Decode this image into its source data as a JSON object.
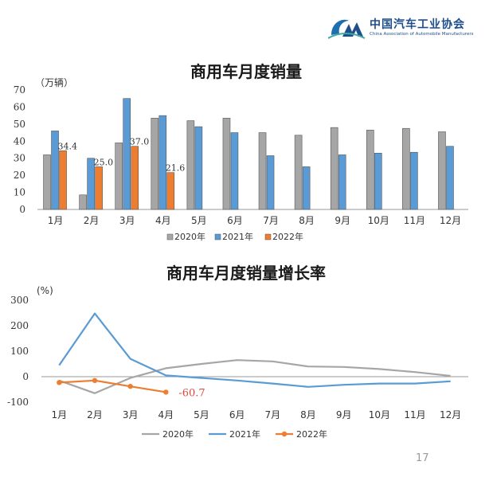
{
  "logo": {
    "cn": "中国汽车工业协会",
    "en": "China Association of Automobile Manufacturers"
  },
  "page_number": "17",
  "chart_data": [
    {
      "type": "bar",
      "title": "商用车月度销量",
      "unit_label": "（万辆）",
      "categories": [
        "1月",
        "2月",
        "3月",
        "4月",
        "5月",
        "6月",
        "7月",
        "8月",
        "9月",
        "10月",
        "11月",
        "12月"
      ],
      "ylim": [
        0,
        70
      ],
      "yticks": [
        "0",
        "10",
        "20",
        "30",
        "40",
        "50",
        "60",
        "70"
      ],
      "legend_position": "bottom",
      "grid": false,
      "series": [
        {
          "name": "2020年",
          "color": "#a6a6a6",
          "values": [
            32,
            8.5,
            39,
            53.5,
            52,
            53.5,
            45,
            43.5,
            48,
            46.5,
            47.5,
            45.5
          ]
        },
        {
          "name": "2021年",
          "color": "#5b9bd5",
          "values": [
            46,
            30,
            65,
            55,
            48.5,
            45,
            31.5,
            25,
            32,
            33,
            33.5,
            37
          ]
        },
        {
          "name": "2022年",
          "color": "#ed7d31",
          "values": [
            34.4,
            25.0,
            37.0,
            21.6,
            null,
            null,
            null,
            null,
            null,
            null,
            null,
            null
          ]
        }
      ],
      "data_labels": [
        "34.4",
        "25.0",
        "37.0",
        "21.6"
      ]
    },
    {
      "type": "line",
      "title": "商用车月度销量增长率",
      "unit_label": "(%)",
      "categories": [
        "1月",
        "2月",
        "3月",
        "4月",
        "5月",
        "6月",
        "7月",
        "8月",
        "9月",
        "10月",
        "11月",
        "12月"
      ],
      "ylim": [
        -100,
        300
      ],
      "yticks": [
        "300",
        "200",
        "100",
        "0",
        "-100"
      ],
      "legend_position": "bottom",
      "grid": false,
      "series": [
        {
          "name": "2020年",
          "color": "#a6a6a6",
          "values": [
            -15,
            -65,
            -5,
            33,
            50,
            65,
            60,
            40,
            38,
            30,
            18,
            3
          ]
        },
        {
          "name": "2021年",
          "color": "#5b9bd5",
          "values": [
            45,
            248,
            70,
            5,
            -5,
            -15,
            -27,
            -40,
            -32,
            -27,
            -27,
            -18
          ]
        },
        {
          "name": "2022年",
          "color": "#ed7d31",
          "values": [
            -23,
            -15,
            -38,
            -60.7,
            null,
            null,
            null,
            null,
            null,
            null,
            null,
            null
          ]
        }
      ],
      "data_labels": [
        "-60.7"
      ]
    }
  ]
}
